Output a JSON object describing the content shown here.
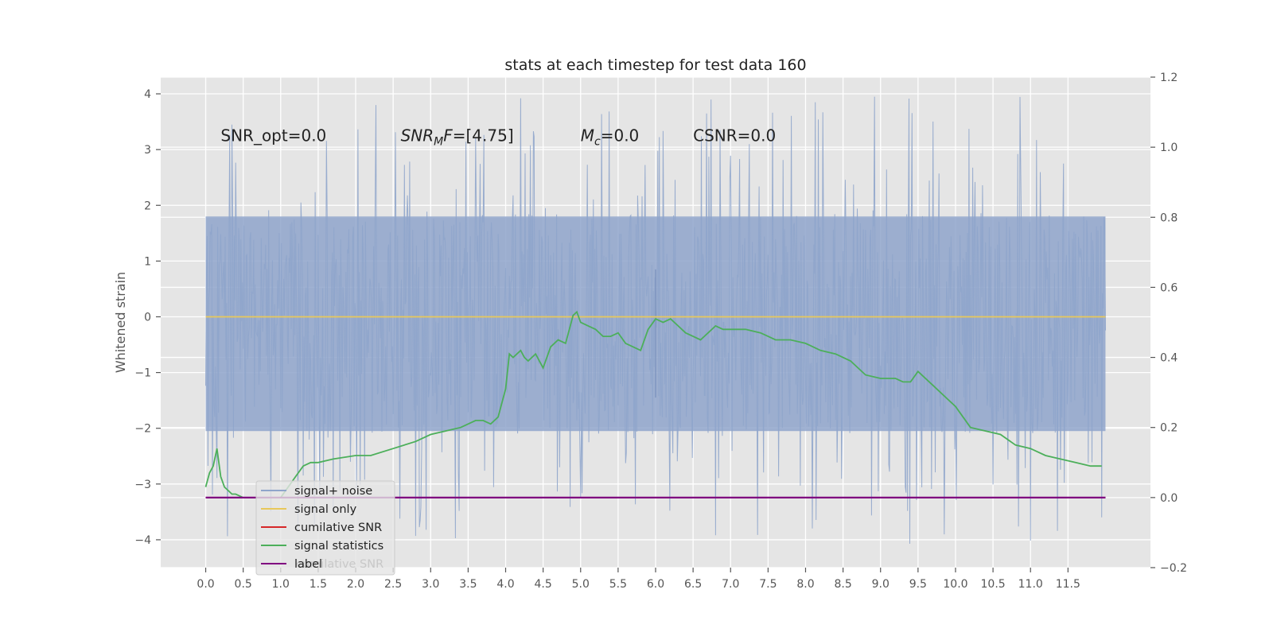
{
  "chart_data": {
    "type": "line",
    "title": "stats at each timestep for test data 160",
    "ylabel": "Whitened strain",
    "xlabel": "",
    "xlim": [
      -0.6,
      12.6
    ],
    "ylim": [
      -4.5,
      4.3
    ],
    "y2lim": [
      -0.2,
      1.2
    ],
    "grid": true,
    "legend_position": "lower-left",
    "x_ticks": [
      "0.0",
      "0.5",
      "1.0",
      "1.5",
      "2.0",
      "2.5",
      "3.0",
      "3.5",
      "4.0",
      "4.5",
      "5.0",
      "5.5",
      "6.0",
      "6.5",
      "7.0",
      "7.5",
      "8.0",
      "8.5",
      "9.0",
      "9.5",
      "10.0",
      "10.5",
      "11.0",
      "11.5"
    ],
    "y_ticks": [
      "4",
      "3",
      "2",
      "1",
      "0",
      "−1",
      "−2",
      "−3",
      "−4"
    ],
    "y2_ticks": [
      "1.2",
      "1.0",
      "0.8",
      "0.6",
      "0.4",
      "0.2",
      "0.0",
      "−0.2"
    ],
    "annotations": [
      {
        "id": "snr_opt",
        "text": "SNR_opt=0.0",
        "x": 0.2,
        "y": 3.15
      },
      {
        "id": "snr_mf",
        "text": "SNR_MF=[4.75]",
        "x": 2.6,
        "y": 3.15
      },
      {
        "id": "mc",
        "text": "M_c=0.0",
        "x": 5.0,
        "y": 3.15
      },
      {
        "id": "csnr",
        "text": "CSNR=0.0",
        "x": 6.5,
        "y": 3.15
      }
    ],
    "series": [
      {
        "name": "signal+ noise",
        "color": "#8fa5cb",
        "axis": "left",
        "kind": "noise",
        "x_range": [
          0.0,
          12.0
        ],
        "band": [
          -2.1,
          1.85
        ],
        "extremes": [
          -4.1,
          3.95
        ]
      },
      {
        "name": "signal only",
        "color": "#e8c85a",
        "axis": "left",
        "x": [
          0.0,
          12.0
        ],
        "values": [
          0.0,
          0.0
        ]
      },
      {
        "name": "cumilative SNR",
        "color": "#d62728",
        "axis": "right",
        "x": [],
        "values": []
      },
      {
        "name": "signal statistics",
        "color": "#4caf5a",
        "axis": "right",
        "x": [
          0.0,
          0.05,
          0.1,
          0.15,
          0.2,
          0.25,
          0.3,
          0.35,
          0.4,
          0.5,
          0.6,
          0.7,
          0.8,
          0.9,
          1.0,
          1.1,
          1.2,
          1.3,
          1.4,
          1.5,
          1.7,
          2.0,
          2.2,
          2.5,
          2.8,
          3.0,
          3.2,
          3.4,
          3.5,
          3.6,
          3.7,
          3.8,
          3.9,
          4.0,
          4.05,
          4.1,
          4.2,
          4.25,
          4.3,
          4.4,
          4.5,
          4.6,
          4.7,
          4.8,
          4.9,
          4.95,
          5.0,
          5.1,
          5.2,
          5.3,
          5.4,
          5.5,
          5.6,
          5.7,
          5.8,
          5.9,
          6.0,
          6.1,
          6.2,
          6.3,
          6.4,
          6.5,
          6.6,
          6.7,
          6.8,
          6.9,
          7.0,
          7.2,
          7.4,
          7.5,
          7.6,
          7.8,
          8.0,
          8.1,
          8.2,
          8.4,
          8.6,
          8.8,
          9.0,
          9.2,
          9.3,
          9.4,
          9.5,
          9.7,
          9.9,
          10.0,
          10.2,
          10.4,
          10.6,
          10.8,
          11.0,
          11.2,
          11.4,
          11.6,
          11.8,
          11.95
        ],
        "values": [
          0.03,
          0.07,
          0.09,
          0.14,
          0.06,
          0.03,
          0.02,
          0.01,
          0.01,
          0.0,
          0.0,
          0.0,
          0.0,
          0.0,
          0.0,
          0.03,
          0.06,
          0.09,
          0.1,
          0.1,
          0.11,
          0.12,
          0.12,
          0.14,
          0.16,
          0.18,
          0.19,
          0.2,
          0.21,
          0.22,
          0.22,
          0.21,
          0.23,
          0.31,
          0.41,
          0.4,
          0.42,
          0.4,
          0.39,
          0.41,
          0.37,
          0.43,
          0.45,
          0.44,
          0.52,
          0.53,
          0.5,
          0.49,
          0.48,
          0.46,
          0.46,
          0.47,
          0.44,
          0.43,
          0.42,
          0.48,
          0.51,
          0.5,
          0.51,
          0.49,
          0.47,
          0.46,
          0.45,
          0.47,
          0.49,
          0.48,
          0.48,
          0.48,
          0.47,
          0.46,
          0.45,
          0.45,
          0.44,
          0.43,
          0.42,
          0.41,
          0.39,
          0.35,
          0.34,
          0.34,
          0.33,
          0.33,
          0.36,
          0.32,
          0.28,
          0.26,
          0.2,
          0.19,
          0.18,
          0.15,
          0.14,
          0.12,
          0.11,
          0.1,
          0.09,
          0.09
        ]
      },
      {
        "name": "label",
        "color": "#800080",
        "axis": "right",
        "x": [
          0.0,
          12.0
        ],
        "values": [
          0.0,
          0.0
        ]
      }
    ],
    "legend_overlap_text": "cumilative SNR"
  },
  "colors": {
    "plot_background": "#e5e5e5",
    "grid": "#ffffff",
    "noise": "#8fa5cb",
    "noise_spike": "#7890bb"
  }
}
